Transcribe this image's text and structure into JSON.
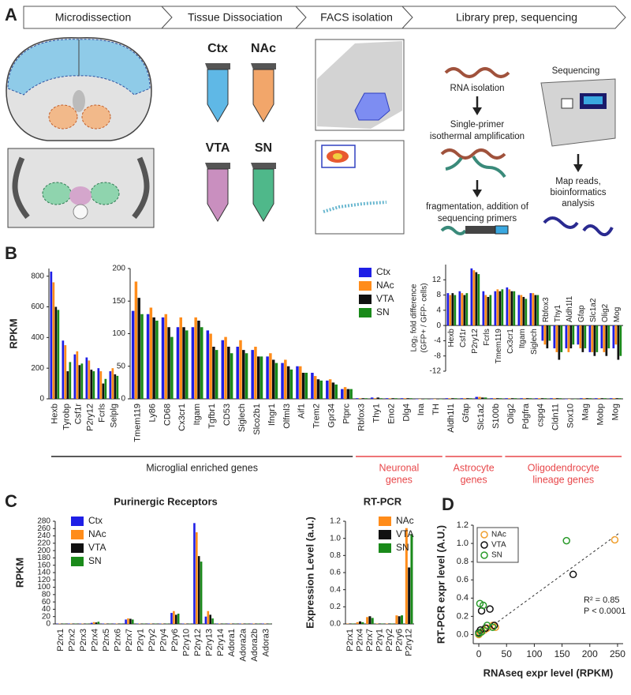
{
  "panel_labels": [
    "A",
    "B",
    "C",
    "D"
  ],
  "panel_a": {
    "workflow": [
      "Microdissection",
      "Tissue Dissociation",
      "FACS isolation",
      "Library prep, sequencing"
    ],
    "tubes": [
      {
        "name": "Ctx",
        "color": "#5fb8e6"
      },
      {
        "name": "NAc",
        "color": "#f2a66a"
      },
      {
        "name": "VTA",
        "color": "#c98fbf"
      },
      {
        "name": "SN",
        "color": "#4fb88a"
      }
    ],
    "steps": {
      "rna": "RNA isolation",
      "amp": [
        "Single-primer",
        "isothermal amplification"
      ],
      "frag": [
        "fragmentation, addition of",
        "sequencing primers"
      ],
      "seq": "Sequencing",
      "map": [
        "Map reads,",
        "bioinformatics",
        "analysis"
      ]
    }
  },
  "chart_data": [
    {
      "type": "bar",
      "ylabel": "RPKM",
      "categories": [
        "Hexb",
        "Tyrobp",
        "Csf1r",
        "P2ry12",
        "Fcrls",
        "Selplg"
      ],
      "series": [
        {
          "color": "#1f1fe6",
          "values": [
            830,
            380,
            290,
            270,
            200,
            180
          ]
        },
        {
          "color": "#ff8c1a",
          "values": [
            760,
            350,
            310,
            250,
            180,
            200
          ]
        },
        {
          "color": "#111111",
          "values": [
            600,
            180,
            220,
            190,
            100,
            160
          ]
        },
        {
          "color": "#1a8a1a",
          "values": [
            580,
            240,
            230,
            180,
            130,
            150
          ]
        }
      ],
      "ylim": [
        0,
        850
      ],
      "yticks": [
        0,
        200,
        400,
        600,
        800
      ]
    },
    {
      "type": "bar",
      "categories": [
        "Tmem119",
        "Ly86",
        "CD68",
        "Cx3cr1",
        "Itgam",
        "Tgfbr1",
        "CD53",
        "Siglech",
        "Slco2b1",
        "Ifngr1",
        "Olfml3",
        "Aif1",
        "Trem2",
        "Gpr34",
        "Ptprc",
        "Rbfox3",
        "Thy1",
        "Eno2",
        "Dlg4",
        "Ina",
        "TH",
        "Aldh1l1",
        "Gfap",
        "Slc1a2",
        "S100b",
        "Olig2",
        "Pdgfra",
        "cspg4",
        "Cldn11",
        "Sox10",
        "Mag",
        "Mobp",
        "Mog"
      ],
      "series": [
        {
          "name": "Ctx",
          "color": "#1f1fe6",
          "values": [
            135,
            130,
            125,
            110,
            110,
            105,
            90,
            80,
            75,
            65,
            55,
            50,
            40,
            28,
            15,
            1,
            2,
            1,
            1,
            0,
            0,
            1,
            1,
            3,
            1,
            1,
            1,
            1,
            1,
            0,
            1,
            1,
            1
          ]
        },
        {
          "name": "NAc",
          "color": "#ff8c1a",
          "values": [
            180,
            140,
            130,
            125,
            125,
            100,
            95,
            90,
            80,
            70,
            60,
            50,
            35,
            30,
            18,
            1,
            1,
            1,
            1,
            0,
            0,
            1,
            1,
            3,
            1,
            1,
            1,
            1,
            1,
            0,
            1,
            1,
            1
          ]
        },
        {
          "name": "VTA",
          "color": "#111111",
          "values": [
            155,
            125,
            110,
            110,
            120,
            80,
            80,
            75,
            65,
            60,
            50,
            40,
            30,
            25,
            15,
            1,
            2,
            1,
            1,
            0,
            0,
            1,
            1,
            2,
            1,
            1,
            1,
            1,
            1,
            0,
            1,
            1,
            1
          ]
        },
        {
          "name": "SN",
          "color": "#1a8a1a",
          "values": [
            130,
            120,
            95,
            105,
            110,
            75,
            70,
            70,
            65,
            55,
            45,
            40,
            28,
            22,
            15,
            1,
            1,
            1,
            1,
            0,
            0,
            1,
            1,
            2,
            1,
            1,
            1,
            1,
            1,
            0,
            1,
            1,
            1
          ]
        }
      ],
      "ylim": [
        0,
        200
      ],
      "yticks": [
        0,
        50,
        100,
        150,
        200
      ],
      "legend": true,
      "groups": [
        {
          "label": [
            "Microglial enriched genes"
          ],
          "color": "#222222"
        },
        {
          "label": [
            "Neuronal",
            "genes"
          ],
          "color": "#e8474a"
        },
        {
          "label": [
            "Astrocyte",
            "genes"
          ],
          "color": "#e8474a"
        },
        {
          "label": [
            "Oligodendrocyte",
            "lineage genes"
          ],
          "color": "#e8474a"
        }
      ]
    },
    {
      "type": "bar",
      "ylabel": [
        "Log₂ fold difference",
        "(GFP+ / GFP- cells)"
      ],
      "categories": [
        "Hexb",
        "Csf1r",
        "P2ry12",
        "Fcrls",
        "Tmem119",
        "Cx3cr1",
        "Itgam",
        "Siglech",
        "Rbfox3",
        "Thy1",
        "Aldh1l1",
        "Gfap",
        "Slc1a2",
        "Olig2",
        "Mog"
      ],
      "series": [
        {
          "color": "#1f1fe6",
          "values": [
            8.5,
            9,
            15,
            9,
            9,
            10,
            8,
            8.5,
            -4,
            -6,
            -6,
            -5,
            -7,
            -6,
            -6
          ]
        },
        {
          "color": "#ff8c1a",
          "values": [
            8,
            8.5,
            14.5,
            8,
            9.5,
            9.5,
            8,
            8.5,
            -5,
            -7,
            -7,
            -6,
            -7,
            -7,
            -5
          ]
        },
        {
          "color": "#111111",
          "values": [
            8.5,
            8,
            14,
            7.5,
            9,
            9,
            7.5,
            8,
            -6,
            -9,
            -6,
            -7,
            -8,
            -8,
            -9
          ]
        },
        {
          "color": "#1a8a1a",
          "values": [
            8,
            8.5,
            13.5,
            8,
            9.5,
            9,
            7,
            8,
            -4,
            -7,
            -5,
            -6,
            -7,
            -6,
            -8
          ]
        }
      ],
      "ylim": [
        -12,
        16
      ],
      "yticks": [
        -12,
        -8,
        -4,
        0,
        4,
        8,
        12
      ]
    },
    {
      "type": "bar",
      "title": "Purinergic Receptors",
      "ylabel": "RPKM",
      "categories": [
        "P2rx1",
        "P2rx2",
        "P2rx3",
        "P2rx4",
        "P2rx5",
        "P2rx6",
        "P2rx7",
        "P2ry1",
        "P2ry2",
        "P2ry4",
        "P2ry6",
        "P2ry10",
        "P2ry12",
        "P2ry13",
        "P2ry14",
        "Adora1",
        "Adora2a",
        "Adora2b",
        "Adora3"
      ],
      "series": [
        {
          "name": "Ctx",
          "color": "#1f1fe6",
          "values": [
            1,
            1,
            1,
            3,
            1,
            1,
            12,
            1,
            1,
            1,
            30,
            1,
            275,
            20,
            1,
            1,
            1,
            1,
            1
          ]
        },
        {
          "name": "NAc",
          "color": "#ff8c1a",
          "values": [
            1,
            1,
            1,
            5,
            1,
            1,
            15,
            1,
            1,
            1,
            35,
            1,
            250,
            35,
            1,
            1,
            1,
            1,
            1
          ]
        },
        {
          "name": "VTA",
          "color": "#111111",
          "values": [
            1,
            1,
            1,
            4,
            1,
            1,
            14,
            1,
            1,
            1,
            25,
            1,
            185,
            25,
            1,
            1,
            1,
            1,
            1
          ]
        },
        {
          "name": "SN",
          "color": "#1a8a1a",
          "values": [
            1,
            1,
            1,
            6,
            1,
            1,
            12,
            1,
            1,
            1,
            28,
            1,
            170,
            15,
            1,
            1,
            1,
            1,
            1
          ]
        }
      ],
      "ylim": [
        0,
        280
      ],
      "yticks": [
        0,
        20,
        40,
        60,
        80,
        100,
        120,
        140,
        160,
        180,
        200,
        220,
        240,
        260,
        280
      ],
      "legend": true
    },
    {
      "type": "bar",
      "title": "RT-PCR",
      "ylabel": "Expression Level (a.u.)",
      "categories": [
        "P2rx1",
        "P2rx4",
        "P2rx7",
        "P2ry1",
        "P2ry2",
        "P2ry6",
        "P2ry12"
      ],
      "series": [
        {
          "name": "NAc",
          "color": "#ff8c1a",
          "values": [
            0.005,
            0.02,
            0.08,
            0.005,
            0.005,
            0.1,
            1.12
          ]
        },
        {
          "name": "VTA",
          "color": "#111111",
          "values": [
            0.005,
            0.03,
            0.09,
            0.005,
            0.005,
            0.09,
            0.66
          ]
        },
        {
          "name": "SN",
          "color": "#1a8a1a",
          "values": [
            0.005,
            0.02,
            0.07,
            0.005,
            0.005,
            0.1,
            1.05
          ]
        }
      ],
      "ylim": [
        0,
        1.2
      ],
      "yticks": [
        {
          "value": 0,
          "label": "0.0"
        },
        0.2,
        0.4,
        0.6,
        0.8,
        {
          "value": 1,
          "label": "1.0"
        },
        1.2
      ],
      "legend": true
    },
    {
      "type": "scatter",
      "xlabel": "RNAseq expr level (RPKM)",
      "ylabel": "RT-PCR expr level (A.U.)",
      "series": [
        {
          "name": "NAc",
          "color": "#f0a030",
          "x": [
            245,
            25,
            30,
            15,
            0,
            3,
            10
          ],
          "values": [
            1.04,
            0.1,
            0.08,
            0.07,
            0.0,
            0.02,
            0.05
          ]
        },
        {
          "name": "VTA",
          "color": "#111111",
          "x": [
            170,
            5,
            20,
            0,
            12,
            28,
            3
          ],
          "values": [
            0.66,
            0.26,
            0.28,
            0.02,
            0.07,
            0.1,
            0.05
          ]
        },
        {
          "name": "SN",
          "color": "#2a9a2a",
          "x": [
            158,
            2,
            8,
            0,
            15,
            25,
            5
          ],
          "values": [
            1.03,
            0.34,
            0.32,
            0.01,
            0.1,
            0.08,
            0.03
          ]
        }
      ],
      "xlim": [
        -10,
        260
      ],
      "xticks": [
        0,
        50,
        100,
        150,
        200,
        250
      ],
      "ylim": [
        -0.1,
        1.2
      ],
      "yticks": [
        {
          "value": 0,
          "label": "0.0"
        },
        0.2,
        0.4,
        0.6,
        0.8,
        {
          "value": 1,
          "label": "1.0"
        },
        1.2
      ],
      "legend": true,
      "annotations": [
        "R² = 0.85",
        "P < 0.0001"
      ]
    }
  ]
}
